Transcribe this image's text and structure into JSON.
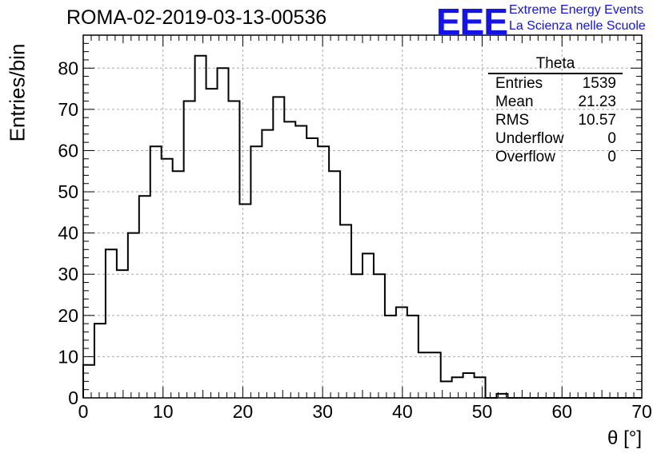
{
  "title": "ROMA-02-2019-03-13-00536",
  "logo": {
    "mark": "EEE",
    "line1": "Extreme Energy Events",
    "line2": "La Scienza nelle Scuole",
    "color": "#1414e6"
  },
  "stats_box": {
    "name": "Theta",
    "rows": [
      {
        "label": "Entries",
        "value": "1539"
      },
      {
        "label": "Mean",
        "value": "21.23"
      },
      {
        "label": "RMS",
        "value": "10.57"
      },
      {
        "label": "Underflow",
        "value": "0"
      },
      {
        "label": "Overflow",
        "value": "0"
      }
    ]
  },
  "chart_data": {
    "type": "bar",
    "style": "step-histogram",
    "title": "ROMA-02-2019-03-13-00536",
    "xlabel": "θ [°]",
    "ylabel": "Entries/bin",
    "xlim": [
      0,
      70
    ],
    "ylim": [
      0,
      88
    ],
    "grid": true,
    "x_ticks": [
      "0",
      "10",
      "20",
      "30",
      "40",
      "50",
      "60",
      "70"
    ],
    "y_ticks": [
      "0",
      "10",
      "20",
      "30",
      "40",
      "50",
      "60",
      "70",
      "80"
    ],
    "bin_width": 1.4,
    "bin_start": 0,
    "values": [
      8,
      18,
      36,
      31,
      40,
      49,
      61,
      58,
      55,
      72,
      83,
      75,
      80,
      72,
      47,
      61,
      65,
      73,
      67,
      66,
      63,
      61,
      55,
      42,
      30,
      35,
      30,
      20,
      22,
      20,
      11,
      11,
      4,
      5,
      6,
      5,
      0,
      1,
      0,
      0,
      0,
      0,
      0,
      0,
      0,
      0,
      0,
      0,
      0,
      0
    ]
  }
}
